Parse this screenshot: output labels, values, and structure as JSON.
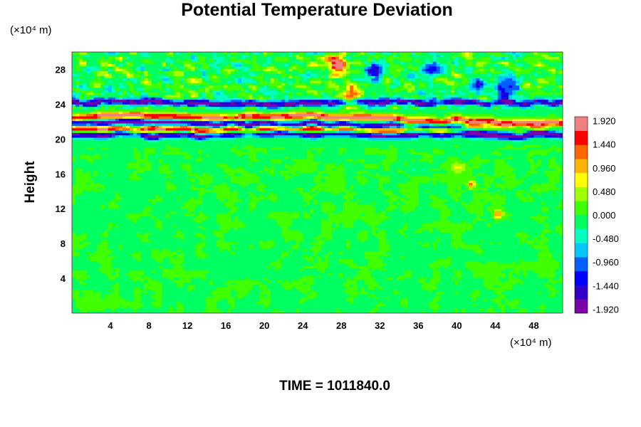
{
  "chart_data": {
    "type": "heatmap",
    "title": "Potential Temperature Deviation",
    "ylabel": "Height",
    "x_unit": "(×10⁴ m)",
    "y_unit": "(×10⁴ m)",
    "time_label": "TIME = 1011840.0",
    "xlim": [
      0,
      51
    ],
    "ylim": [
      0,
      30
    ],
    "x_ticks": [
      {
        "value": 4,
        "label": "4"
      },
      {
        "value": 8,
        "label": "8"
      },
      {
        "value": 12,
        "label": "12"
      },
      {
        "value": 16,
        "label": "16"
      },
      {
        "value": 20,
        "label": "20"
      },
      {
        "value": 24,
        "label": "24"
      },
      {
        "value": 28,
        "label": "28"
      },
      {
        "value": 32,
        "label": "32"
      },
      {
        "value": 36,
        "label": "36"
      },
      {
        "value": 40,
        "label": "40"
      },
      {
        "value": 44,
        "label": "44"
      },
      {
        "value": 48,
        "label": "48"
      }
    ],
    "y_ticks": [
      {
        "value": 4,
        "label": "4"
      },
      {
        "value": 8,
        "label": "8"
      },
      {
        "value": 12,
        "label": "12"
      },
      {
        "value": 16,
        "label": "16"
      },
      {
        "value": 20,
        "label": "20"
      },
      {
        "value": 24,
        "label": "24"
      },
      {
        "value": 28,
        "label": "28"
      }
    ],
    "colorbar": {
      "min": -2.0,
      "max": 2.0,
      "labels": [
        {
          "value": 1.92,
          "label": "1.920"
        },
        {
          "value": 1.44,
          "label": "1.440"
        },
        {
          "value": 0.96,
          "label": "0.960"
        },
        {
          "value": 0.48,
          "label": "0.480"
        },
        {
          "value": 0.0,
          "label": "0.000"
        },
        {
          "value": -0.48,
          "label": "-0.480"
        },
        {
          "value": -0.96,
          "label": "-0.960"
        },
        {
          "value": -1.44,
          "label": "-1.440"
        },
        {
          "value": -1.92,
          "label": "-1.920"
        }
      ],
      "colors": [
        "#7a00a8",
        "#3200c8",
        "#0000ff",
        "#0060ff",
        "#00c8ff",
        "#00ffc0",
        "#00ff60",
        "#40ff00",
        "#a0ff00",
        "#ffff00",
        "#ffb400",
        "#ff6400",
        "#ff0000",
        "#f08080"
      ]
    },
    "field_bands": [
      {
        "name": "upper-positive",
        "y": 22.6,
        "value": 1.9
      },
      {
        "name": "upper-negative",
        "y": 21.8,
        "value": -1.9
      },
      {
        "name": "middle-positive",
        "y": 21.1,
        "value": 1.9
      },
      {
        "name": "lower-negative",
        "y": 20.5,
        "value": -1.9
      },
      {
        "name": "top-negative",
        "y": 24.2,
        "value": -1.7
      }
    ]
  }
}
